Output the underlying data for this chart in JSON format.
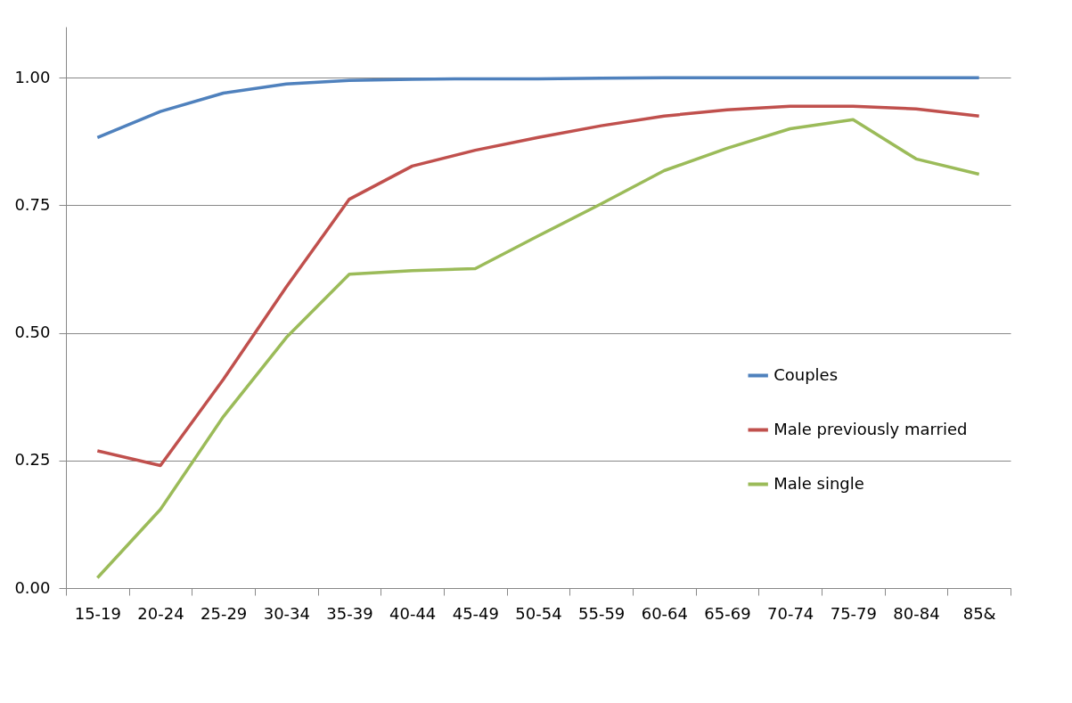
{
  "chart_data": {
    "type": "line",
    "categories": [
      "15-19",
      "20-24",
      "25-29",
      "30-34",
      "35-39",
      "40-44",
      "45-49",
      "50-54",
      "55-59",
      "60-64",
      "65-69",
      "70-74",
      "75-79",
      "80-84",
      "85&"
    ],
    "series": [
      {
        "name": "Couples",
        "color": "#4f81bd",
        "values": [
          0.883,
          0.934,
          0.97,
          0.988,
          0.995,
          0.997,
          0.998,
          0.998,
          0.999,
          1.0,
          1.0,
          1.0,
          1.0,
          1.0,
          1.0
        ]
      },
      {
        "name": "Male previously married",
        "color": "#c0504d",
        "values": [
          0.269,
          0.24,
          0.409,
          0.59,
          0.762,
          0.827,
          0.858,
          0.883,
          0.906,
          0.925,
          0.937,
          0.944,
          0.944,
          0.939,
          0.925
        ]
      },
      {
        "name": "Male single",
        "color": "#9bbb59",
        "values": [
          0.02,
          0.154,
          0.336,
          0.491,
          0.615,
          0.622,
          0.626,
          0.69,
          0.753,
          0.818,
          0.862,
          0.9,
          0.918,
          0.841,
          0.811
        ]
      }
    ],
    "ylim": [
      0,
      1.1
    ],
    "yticks": [
      {
        "value": 0,
        "label": "0.00"
      },
      {
        "value": 0.25,
        "label": "0.25"
      },
      {
        "value": 0.5,
        "label": "0.50"
      },
      {
        "value": 0.75,
        "label": "0.75"
      },
      {
        "value": 1.0,
        "label": "1.00"
      }
    ],
    "grid": "y",
    "legend": "right",
    "marker": "none",
    "line_style": "solid"
  }
}
